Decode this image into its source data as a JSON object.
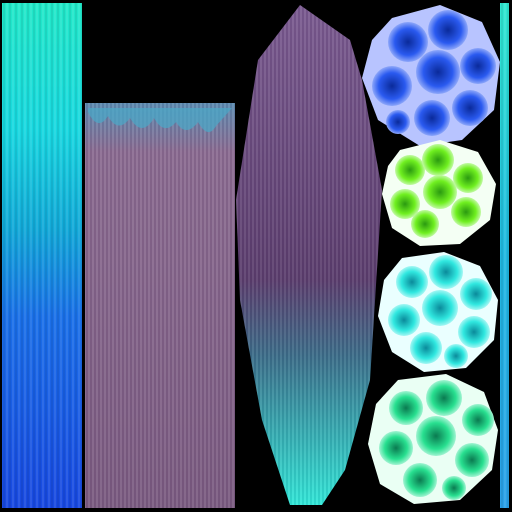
{
  "texture": {
    "background": "#000000",
    "palette": {
      "cyan": "#2ef0d8",
      "teal": "#10b8d0",
      "blue": "#1a4fe0",
      "deep_blue": "#1030b8",
      "mauve": "#7a5a86",
      "dark_mauve": "#4a3258",
      "pink_light": "#e0c0d8",
      "green": "#30e040",
      "lime": "#7cff20",
      "white": "#f4fbff"
    },
    "pieces": [
      {
        "name": "gradient-strip-left",
        "colors": [
          "cyan",
          "teal",
          "blue"
        ]
      },
      {
        "name": "pink-streak-panel",
        "colors": [
          "mauve",
          "pink_light",
          "teal"
        ]
      },
      {
        "name": "leaf-blade",
        "colors": [
          "dark_mauve",
          "mauve",
          "cyan"
        ]
      },
      {
        "name": "cell-disc-blue",
        "colors": [
          "white",
          "blue",
          "deep_blue"
        ]
      },
      {
        "name": "cell-disc-lime",
        "colors": [
          "white",
          "lime",
          "green"
        ]
      },
      {
        "name": "cell-disc-cyan",
        "colors": [
          "white",
          "cyan",
          "teal"
        ]
      },
      {
        "name": "cell-disc-green",
        "colors": [
          "white",
          "cyan",
          "green"
        ]
      },
      {
        "name": "gradient-strip-right",
        "colors": [
          "cyan",
          "teal",
          "blue"
        ]
      }
    ]
  }
}
